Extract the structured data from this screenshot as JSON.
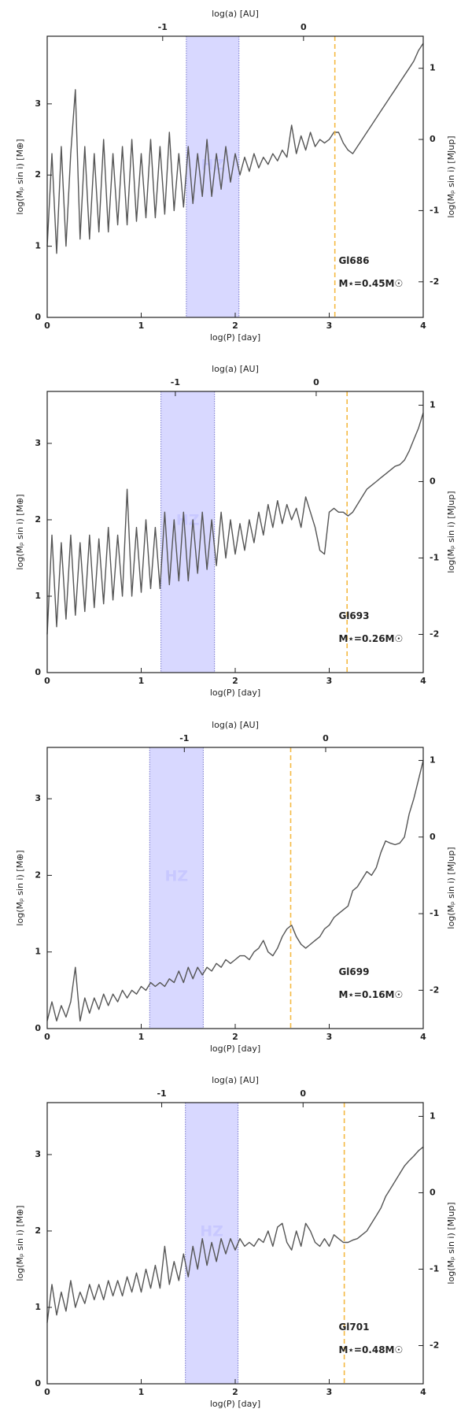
{
  "chart_data": [
    {
      "type": "line",
      "xlabel": "log(P) [day]",
      "x2label": "log(a) [AU]",
      "ylabel": "log(Mₚ sin i) [M⊕]",
      "y2label": "log(Mₚ sin i) [MJup]",
      "xlim": [
        0,
        4
      ],
      "xticks": [
        0,
        1,
        2,
        3,
        4
      ],
      "x2lim": [
        -1.82,
        0.85
      ],
      "x2ticks": [
        -1,
        0
      ],
      "ylim": [
        0,
        3.95
      ],
      "yticks": [
        0,
        1,
        2,
        3
      ],
      "y2lim": [
        -2.5,
        1.45
      ],
      "y2ticks": [
        1,
        0,
        -1,
        -2
      ],
      "hz_span": [
        1.48,
        2.04
      ],
      "hz_color": "#c8c8ff",
      "hz_label": "HZ",
      "vline": 3.06,
      "vline_color": "#f5b942",
      "annotations": [
        "Gl686",
        "M⋆=0.45M☉"
      ],
      "x": [
        0,
        0.05,
        0.1,
        0.15,
        0.2,
        0.25,
        0.3,
        0.35,
        0.4,
        0.45,
        0.5,
        0.55,
        0.6,
        0.65,
        0.7,
        0.75,
        0.8,
        0.85,
        0.9,
        0.95,
        1.0,
        1.05,
        1.1,
        1.15,
        1.2,
        1.25,
        1.3,
        1.35,
        1.4,
        1.45,
        1.5,
        1.55,
        1.6,
        1.65,
        1.7,
        1.75,
        1.8,
        1.85,
        1.9,
        1.95,
        2.0,
        2.05,
        2.1,
        2.15,
        2.2,
        2.25,
        2.3,
        2.35,
        2.4,
        2.45,
        2.5,
        2.55,
        2.6,
        2.65,
        2.7,
        2.75,
        2.8,
        2.85,
        2.9,
        2.95,
        3.0,
        3.05,
        3.1,
        3.15,
        3.2,
        3.25,
        3.3,
        3.35,
        3.4,
        3.45,
        3.5,
        3.55,
        3.6,
        3.65,
        3.7,
        3.75,
        3.8,
        3.85,
        3.9,
        3.95,
        4.0
      ],
      "series": [
        {
          "color": "#555555",
          "values": [
            1.0,
            2.3,
            0.9,
            2.4,
            1.0,
            2.3,
            3.2,
            1.1,
            2.4,
            1.1,
            2.3,
            1.2,
            2.5,
            1.2,
            2.3,
            1.3,
            2.4,
            1.3,
            2.5,
            1.35,
            2.3,
            1.4,
            2.5,
            1.4,
            2.4,
            1.45,
            2.6,
            1.5,
            2.3,
            1.55,
            2.4,
            1.6,
            2.3,
            1.7,
            2.5,
            1.7,
            2.3,
            1.8,
            2.4,
            1.9,
            2.3,
            2.0,
            2.25,
            2.05,
            2.3,
            2.1,
            2.25,
            2.15,
            2.3,
            2.2,
            2.35,
            2.25,
            2.7,
            2.3,
            2.55,
            2.35,
            2.6,
            2.4,
            2.5,
            2.45,
            2.5,
            2.6,
            2.6,
            2.45,
            2.35,
            2.3,
            2.4,
            2.5,
            2.6,
            2.7,
            2.8,
            2.9,
            3.0,
            3.1,
            3.2,
            3.3,
            3.4,
            3.5,
            3.6,
            3.75,
            3.85
          ]
        }
      ]
    },
    {
      "type": "line",
      "xlabel": "log(P) [day]",
      "x2label": "log(a) [AU]",
      "ylabel": "log(Mₚ sin i) [M⊕]",
      "y2label": "log(Mₚ sin i) [MJup]",
      "xlim": [
        0,
        4
      ],
      "xticks": [
        0,
        1,
        2,
        3,
        4
      ],
      "x2lim": [
        -1.91,
        0.76
      ],
      "x2ticks": [
        -1,
        0
      ],
      "ylim": [
        0,
        3.68
      ],
      "yticks": [
        0,
        1,
        2,
        3
      ],
      "y2lim": [
        -2.5,
        1.18
      ],
      "y2ticks": [
        1,
        0,
        -1,
        -2
      ],
      "hz_span": [
        1.21,
        1.78
      ],
      "hz_color": "#c8c8ff",
      "hz_label": "HZ",
      "vline": 3.19,
      "vline_color": "#f5b942",
      "annotations": [
        "Gl693",
        "M⋆=0.26M☉"
      ],
      "x": [
        0,
        0.05,
        0.1,
        0.15,
        0.2,
        0.25,
        0.3,
        0.35,
        0.4,
        0.45,
        0.5,
        0.55,
        0.6,
        0.65,
        0.7,
        0.75,
        0.8,
        0.85,
        0.9,
        0.95,
        1.0,
        1.05,
        1.1,
        1.15,
        1.2,
        1.25,
        1.3,
        1.35,
        1.4,
        1.45,
        1.5,
        1.55,
        1.6,
        1.65,
        1.7,
        1.75,
        1.8,
        1.85,
        1.9,
        1.95,
        2.0,
        2.05,
        2.1,
        2.15,
        2.2,
        2.25,
        2.3,
        2.35,
        2.4,
        2.45,
        2.5,
        2.55,
        2.6,
        2.65,
        2.7,
        2.75,
        2.8,
        2.85,
        2.9,
        2.95,
        3.0,
        3.05,
        3.1,
        3.15,
        3.2,
        3.25,
        3.3,
        3.35,
        3.4,
        3.45,
        3.5,
        3.55,
        3.6,
        3.65,
        3.7,
        3.75,
        3.8,
        3.85,
        3.9,
        3.95,
        4.0
      ],
      "series": [
        {
          "color": "#555555",
          "values": [
            0.5,
            1.8,
            0.6,
            1.7,
            0.7,
            1.8,
            0.75,
            1.7,
            0.8,
            1.8,
            0.85,
            1.75,
            0.9,
            1.9,
            0.95,
            1.8,
            1.0,
            2.4,
            1.0,
            1.9,
            1.05,
            2.0,
            1.1,
            1.9,
            1.1,
            2.1,
            1.15,
            2.0,
            1.2,
            2.1,
            1.2,
            2.0,
            1.3,
            2.1,
            1.35,
            2.0,
            1.4,
            2.1,
            1.5,
            2.0,
            1.55,
            1.95,
            1.6,
            2.0,
            1.7,
            2.1,
            1.8,
            2.2,
            1.9,
            2.25,
            1.95,
            2.2,
            2.0,
            2.15,
            1.9,
            2.3,
            2.1,
            1.9,
            1.6,
            1.55,
            2.1,
            2.15,
            2.1,
            2.1,
            2.05,
            2.1,
            2.2,
            2.3,
            2.4,
            2.45,
            2.5,
            2.55,
            2.6,
            2.65,
            2.7,
            2.72,
            2.78,
            2.9,
            3.05,
            3.2,
            3.4
          ]
        }
      ]
    },
    {
      "type": "line",
      "xlabel": "log(P) [day]",
      "x2label": "log(a) [AU]",
      "ylabel": "log(Mₚ sin i) [M⊕]",
      "y2label": "log(Mₚ sin i) [MJup]",
      "xlim": [
        0,
        4
      ],
      "xticks": [
        0,
        1,
        2,
        3,
        4
      ],
      "x2lim": [
        -1.97,
        0.69
      ],
      "x2ticks": [
        -1,
        0
      ],
      "ylim": [
        0,
        3.67
      ],
      "yticks": [
        0,
        1,
        2,
        3
      ],
      "y2lim": [
        -2.5,
        1.17
      ],
      "y2ticks": [
        1,
        0,
        -1,
        -2
      ],
      "hz_span": [
        1.09,
        1.66
      ],
      "hz_color": "#c8c8ff",
      "hz_label": "HZ",
      "vline": 2.59,
      "vline_color": "#f5b942",
      "annotations": [
        "Gl699",
        "M⋆=0.16M☉"
      ],
      "x": [
        0,
        0.05,
        0.1,
        0.15,
        0.2,
        0.25,
        0.3,
        0.35,
        0.4,
        0.45,
        0.5,
        0.55,
        0.6,
        0.65,
        0.7,
        0.75,
        0.8,
        0.85,
        0.9,
        0.95,
        1.0,
        1.05,
        1.1,
        1.15,
        1.2,
        1.25,
        1.3,
        1.35,
        1.4,
        1.45,
        1.5,
        1.55,
        1.6,
        1.65,
        1.7,
        1.75,
        1.8,
        1.85,
        1.9,
        1.95,
        2.0,
        2.05,
        2.1,
        2.15,
        2.2,
        2.25,
        2.3,
        2.35,
        2.4,
        2.45,
        2.5,
        2.55,
        2.6,
        2.65,
        2.7,
        2.75,
        2.8,
        2.85,
        2.9,
        2.95,
        3.0,
        3.05,
        3.1,
        3.15,
        3.2,
        3.25,
        3.3,
        3.35,
        3.4,
        3.45,
        3.5,
        3.55,
        3.6,
        3.65,
        3.7,
        3.75,
        3.8,
        3.85,
        3.9,
        3.95,
        4.0
      ],
      "series": [
        {
          "color": "#555555",
          "values": [
            0.1,
            0.35,
            0.1,
            0.3,
            0.15,
            0.35,
            0.8,
            0.1,
            0.4,
            0.2,
            0.4,
            0.25,
            0.45,
            0.3,
            0.45,
            0.35,
            0.5,
            0.4,
            0.5,
            0.45,
            0.55,
            0.5,
            0.6,
            0.55,
            0.6,
            0.55,
            0.65,
            0.6,
            0.75,
            0.6,
            0.8,
            0.65,
            0.8,
            0.7,
            0.8,
            0.75,
            0.85,
            0.8,
            0.9,
            0.85,
            0.9,
            0.95,
            0.95,
            0.9,
            1.0,
            1.05,
            1.15,
            1.0,
            0.95,
            1.05,
            1.2,
            1.3,
            1.35,
            1.2,
            1.1,
            1.05,
            1.1,
            1.15,
            1.2,
            1.3,
            1.35,
            1.45,
            1.5,
            1.55,
            1.6,
            1.8,
            1.85,
            1.95,
            2.05,
            2.0,
            2.1,
            2.3,
            2.45,
            2.42,
            2.4,
            2.42,
            2.5,
            2.8,
            3.0,
            3.25,
            3.5
          ]
        }
      ]
    },
    {
      "type": "line",
      "xlabel": "log(P) [day]",
      "x2label": "log(a) [AU]",
      "ylabel": "log(Mₚ sin i) [M⊕]",
      "y2label": "log(Mₚ sin i) [MJup]",
      "xlim": [
        0,
        4
      ],
      "xticks": [
        0,
        1,
        2,
        3,
        4
      ],
      "x2lim": [
        -1.81,
        0.85
      ],
      "x2ticks": [
        -1,
        0
      ],
      "ylim": [
        0,
        3.68
      ],
      "yticks": [
        0,
        1,
        2,
        3
      ],
      "y2lim": [
        -2.5,
        1.18
      ],
      "y2ticks": [
        1,
        0,
        -1,
        -2
      ],
      "hz_span": [
        1.47,
        2.03
      ],
      "hz_color": "#c8c8ff",
      "hz_label": "HZ",
      "vline": 3.16,
      "vline_color": "#f5b942",
      "annotations": [
        "Gl701",
        "M⋆=0.48M☉"
      ],
      "x": [
        0,
        0.05,
        0.1,
        0.15,
        0.2,
        0.25,
        0.3,
        0.35,
        0.4,
        0.45,
        0.5,
        0.55,
        0.6,
        0.65,
        0.7,
        0.75,
        0.8,
        0.85,
        0.9,
        0.95,
        1.0,
        1.05,
        1.1,
        1.15,
        1.2,
        1.25,
        1.3,
        1.35,
        1.4,
        1.45,
        1.5,
        1.55,
        1.6,
        1.65,
        1.7,
        1.75,
        1.8,
        1.85,
        1.9,
        1.95,
        2.0,
        2.05,
        2.1,
        2.15,
        2.2,
        2.25,
        2.3,
        2.35,
        2.4,
        2.45,
        2.5,
        2.55,
        2.6,
        2.65,
        2.7,
        2.75,
        2.8,
        2.85,
        2.9,
        2.95,
        3.0,
        3.05,
        3.1,
        3.15,
        3.2,
        3.25,
        3.3,
        3.35,
        3.4,
        3.45,
        3.5,
        3.55,
        3.6,
        3.65,
        3.7,
        3.75,
        3.8,
        3.85,
        3.9,
        3.95,
        4.0
      ],
      "series": [
        {
          "color": "#555555",
          "values": [
            0.8,
            1.3,
            0.9,
            1.2,
            0.95,
            1.35,
            1.0,
            1.2,
            1.05,
            1.3,
            1.1,
            1.3,
            1.1,
            1.35,
            1.15,
            1.35,
            1.15,
            1.4,
            1.2,
            1.45,
            1.2,
            1.5,
            1.25,
            1.55,
            1.25,
            1.8,
            1.3,
            1.6,
            1.35,
            1.7,
            1.4,
            1.8,
            1.5,
            1.9,
            1.55,
            1.85,
            1.6,
            1.9,
            1.7,
            1.9,
            1.75,
            1.9,
            1.8,
            1.85,
            1.8,
            1.9,
            1.85,
            2.0,
            1.8,
            2.05,
            2.1,
            1.85,
            1.75,
            2.0,
            1.8,
            2.1,
            2.0,
            1.85,
            1.8,
            1.9,
            1.8,
            1.95,
            1.9,
            1.85,
            1.85,
            1.88,
            1.9,
            1.95,
            2.0,
            2.1,
            2.2,
            2.3,
            2.45,
            2.55,
            2.65,
            2.75,
            2.85,
            2.92,
            2.98,
            3.05,
            3.1
          ]
        }
      ]
    }
  ]
}
